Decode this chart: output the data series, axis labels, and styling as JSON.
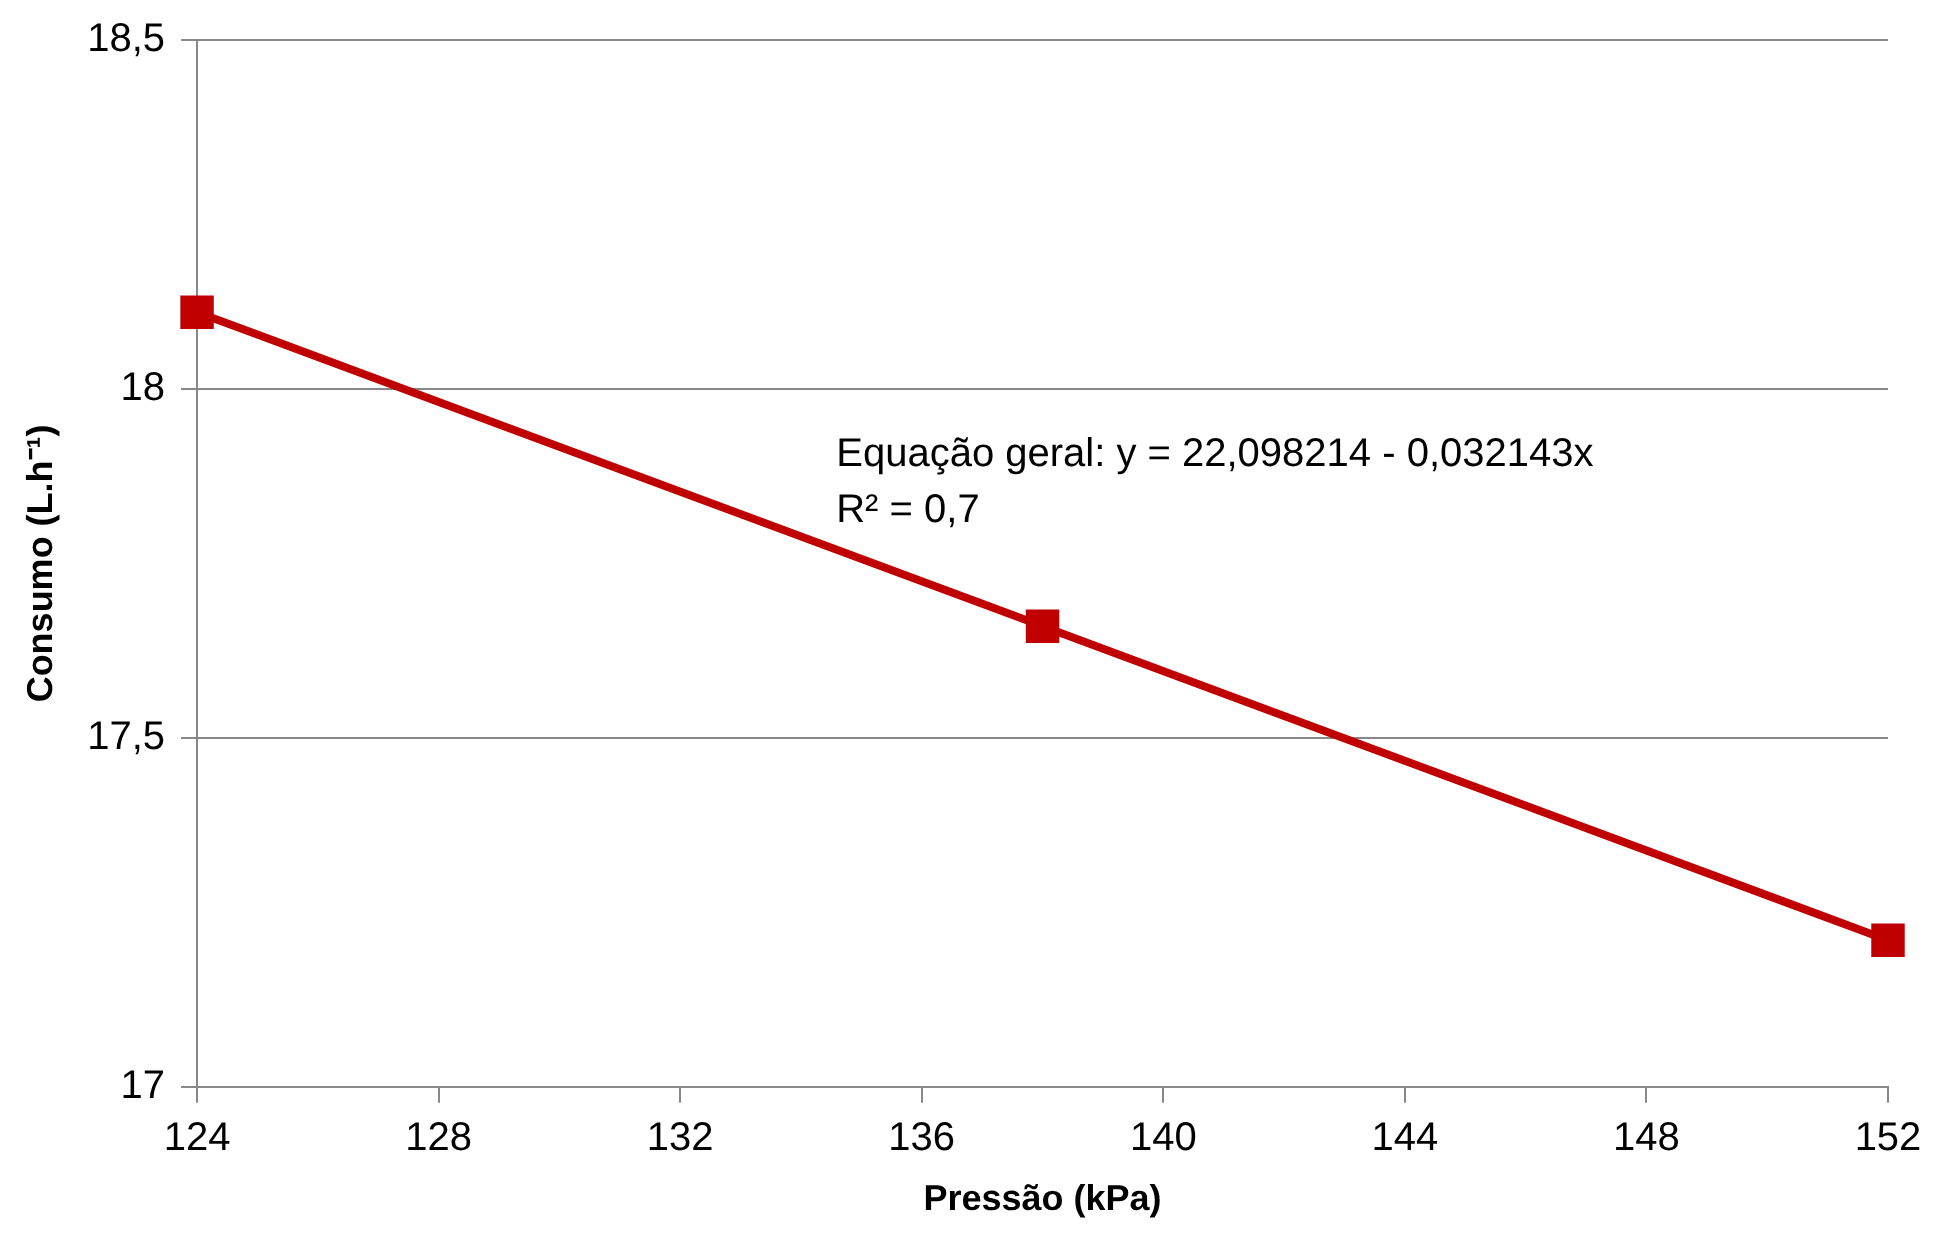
{
  "chart_data": {
    "type": "line",
    "xlabel": "Pressão (kPa)",
    "ylabel": "Consumo (L.h⁻¹)",
    "x": [
      124,
      138,
      152
    ],
    "series": [
      {
        "color": "#c00000",
        "values": [
          18.11,
          17.66,
          17.21
        ]
      }
    ],
    "xlim": [
      124,
      152
    ],
    "xticks": [
      124,
      128,
      132,
      136,
      140,
      144,
      148,
      152
    ],
    "ylim": [
      17,
      18.5
    ],
    "yticks": [
      17,
      {
        "value": 17.5,
        "label": "17,5"
      },
      18,
      {
        "value": 18.5,
        "label": "18,5"
      }
    ],
    "grid": "y",
    "legend": false,
    "marker": "square",
    "line_style": "solid",
    "annotations": [
      "Equação geral: y = 22,098214 - 0,032143x",
      "R² = 0,7"
    ]
  }
}
